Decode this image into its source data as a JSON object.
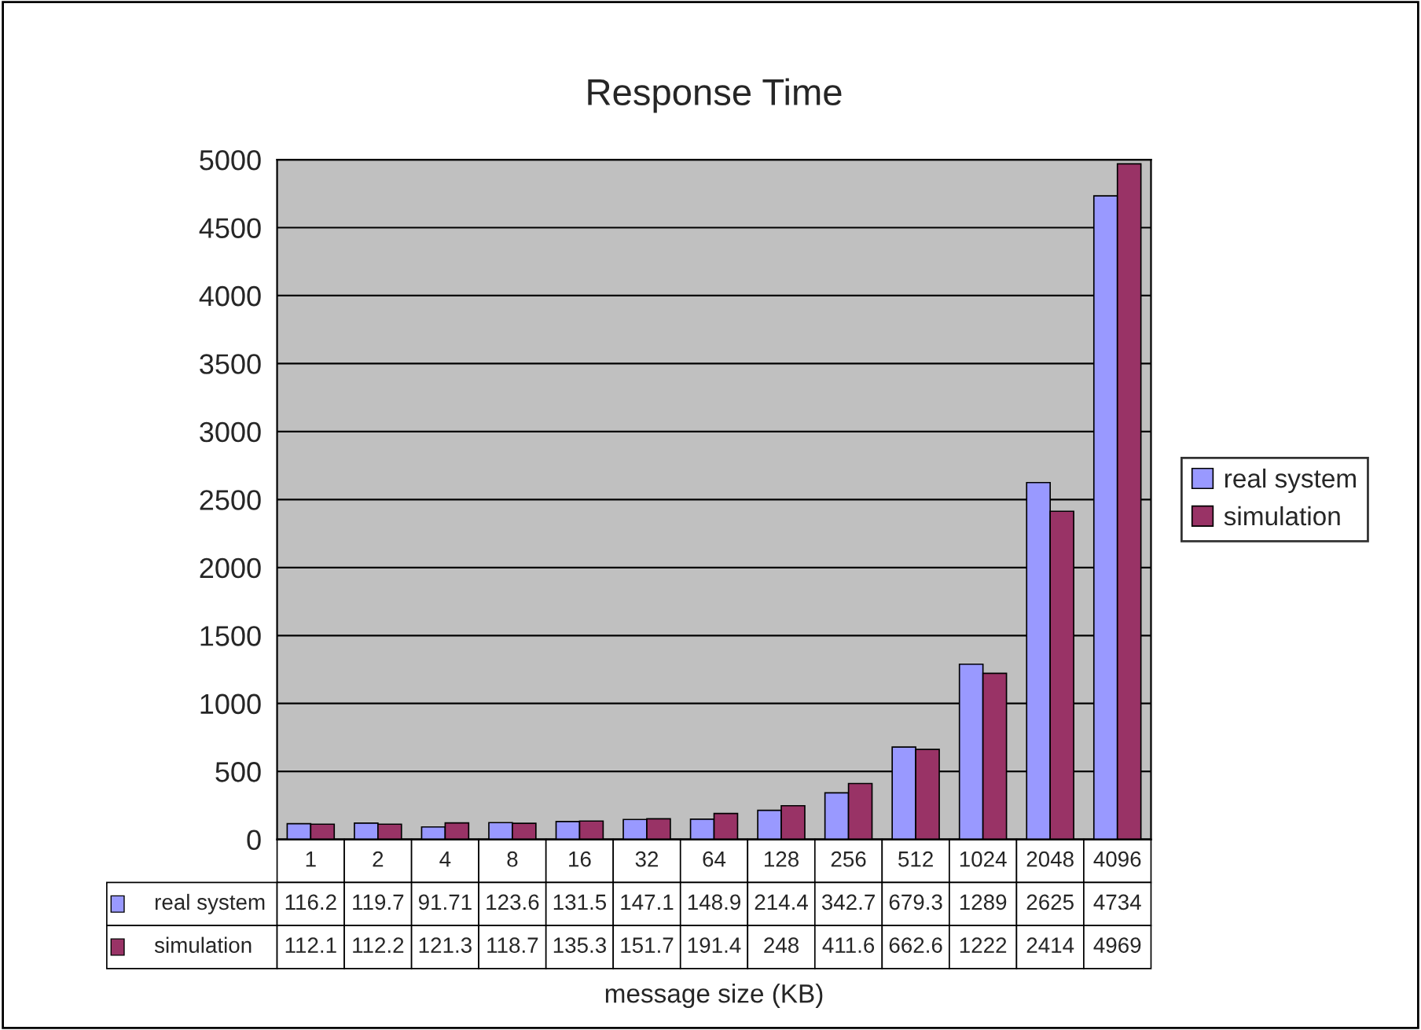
{
  "chart_data": {
    "type": "bar",
    "title": "Response Time",
    "xlabel": "message size (KB)",
    "categories": [
      "1",
      "2",
      "4",
      "8",
      "16",
      "32",
      "64",
      "128",
      "256",
      "512",
      "1024",
      "2048",
      "4096"
    ],
    "series": [
      {
        "name": "real system",
        "color": "#9999ff",
        "values": [
          116.2,
          119.7,
          91.71,
          123.6,
          131.5,
          147.1,
          148.9,
          214.4,
          342.7,
          679.3,
          1289,
          2625,
          4734
        ]
      },
      {
        "name": "simulation",
        "color": "#993366",
        "values": [
          112.1,
          112.2,
          121.3,
          118.7,
          135.3,
          151.7,
          191.4,
          248,
          411.6,
          662.6,
          1222,
          2414,
          4969
        ]
      }
    ],
    "ylim": [
      0,
      5000
    ],
    "yticks": [
      0,
      500,
      1000,
      1500,
      2000,
      2500,
      3000,
      3500,
      4000,
      4500,
      5000
    ],
    "grid": "y",
    "legend": "right",
    "data_labels": true
  }
}
